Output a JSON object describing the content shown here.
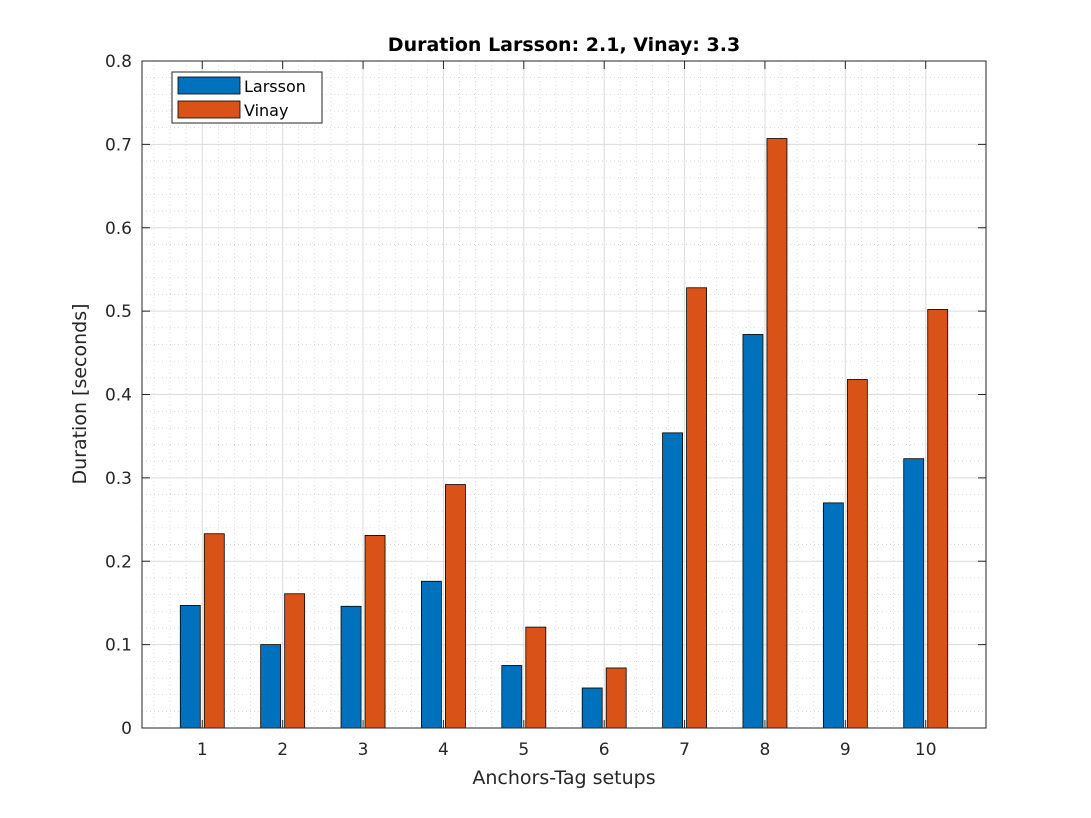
{
  "chart_data": {
    "type": "bar",
    "title": "Duration Larsson: 2.1, Vinay: 3.3",
    "xlabel": "Anchors-Tag setups",
    "ylabel": "Duration [seconds]",
    "categories": [
      "1",
      "2",
      "3",
      "4",
      "5",
      "6",
      "7",
      "8",
      "9",
      "10"
    ],
    "series": [
      {
        "name": "Larsson",
        "color": "#0072BD",
        "values": [
          0.147,
          0.1,
          0.146,
          0.176,
          0.075,
          0.048,
          0.354,
          0.472,
          0.27,
          0.323
        ]
      },
      {
        "name": "Vinay",
        "color": "#D95319",
        "values": [
          0.233,
          0.161,
          0.231,
          0.292,
          0.121,
          0.072,
          0.528,
          0.707,
          0.418,
          0.502
        ]
      }
    ],
    "ylim": [
      0,
      0.8
    ],
    "yticks": [
      "0",
      "0.1",
      "0.2",
      "0.3",
      "0.4",
      "0.5",
      "0.6",
      "0.7",
      "0.8"
    ],
    "grid": true,
    "minor_grid": true,
    "legend_position": "top-left"
  }
}
